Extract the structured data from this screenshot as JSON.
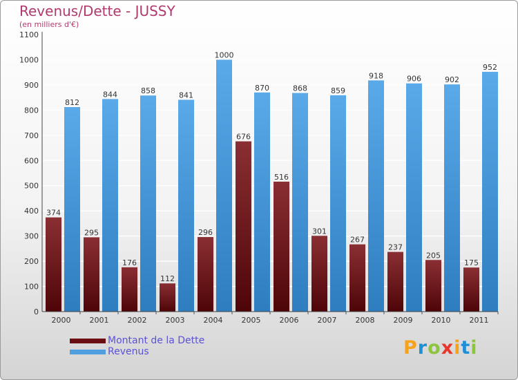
{
  "header": {
    "title": "Revenus/Dette - JUSSY",
    "subtitle": "(en milliers d'€)"
  },
  "chart_data": {
    "type": "bar",
    "categories": [
      "2000",
      "2001",
      "2002",
      "2003",
      "2004",
      "2005",
      "2006",
      "2007",
      "2008",
      "2009",
      "2010",
      "2011"
    ],
    "series": [
      {
        "name": "Montant de la Dette",
        "values": [
          374,
          295,
          176,
          112,
          296,
          676,
          516,
          301,
          267,
          237,
          205,
          175
        ],
        "color": "#6b0f13"
      },
      {
        "name": "Revenus",
        "values": [
          812,
          844,
          858,
          841,
          1000,
          870,
          868,
          859,
          918,
          906,
          902,
          952
        ],
        "color": "#4f9fe0"
      }
    ],
    "ylim": [
      0,
      1100
    ],
    "yticks": [
      0,
      100,
      200,
      300,
      400,
      500,
      600,
      700,
      800,
      900,
      1000,
      1100
    ],
    "grid": true,
    "legend": "bottom-left"
  },
  "legend": {
    "items": [
      {
        "label": "Montant de la Dette",
        "color": "#6b0f13"
      },
      {
        "label": "Revenus",
        "color": "#4f9fe0"
      }
    ]
  },
  "logo": {
    "letters": [
      "P",
      "r",
      "o",
      "x",
      "i",
      "t",
      "i"
    ],
    "colors": [
      "#f7a21b",
      "#1f8fd6",
      "#8cc63f",
      "#e8362b",
      "#f7a21b",
      "#1f8fd6",
      "#8cc63f"
    ]
  }
}
